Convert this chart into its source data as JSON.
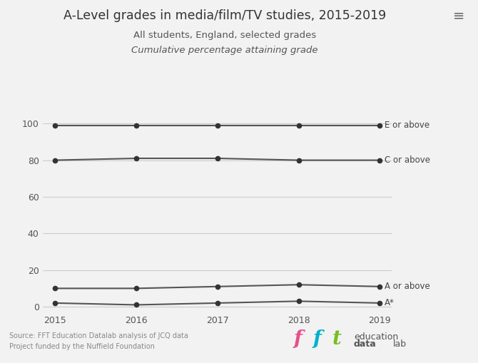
{
  "title": "A-Level grades in media/film/TV studies, 2015-2019",
  "subtitle1": "All students, England, selected grades",
  "subtitle2": "Cumulative percentage attaining grade",
  "source_line1": "Source: FFT Education Datalab analysis of JCQ data",
  "source_line2": "Project funded by the Nuffield Foundation",
  "years": [
    2015,
    2016,
    2017,
    2018,
    2019
  ],
  "series": {
    "E or above": [
      99,
      99,
      99,
      99,
      99
    ],
    "C or above": [
      80,
      81,
      81,
      80,
      80
    ],
    "A or above": [
      10,
      10,
      11,
      12,
      11
    ],
    "A*": [
      2,
      1,
      2,
      3,
      2
    ]
  },
  "line_color": "#555555",
  "marker_color": "#333333",
  "bg_color": "#f2f2f2",
  "grid_color": "#cccccc",
  "ylim": [
    -3,
    108
  ],
  "yticks": [
    0,
    20,
    40,
    60,
    80,
    100
  ],
  "label_fontsize": 8.5,
  "title_fontsize": 12.5,
  "subtitle_fontsize": 9.5,
  "source_fontsize": 7,
  "hamburger_color": "#666666",
  "fft_colors": {
    "f1": "#e84e8a",
    "f2": "#00b0ca",
    "t": "#78be20"
  }
}
